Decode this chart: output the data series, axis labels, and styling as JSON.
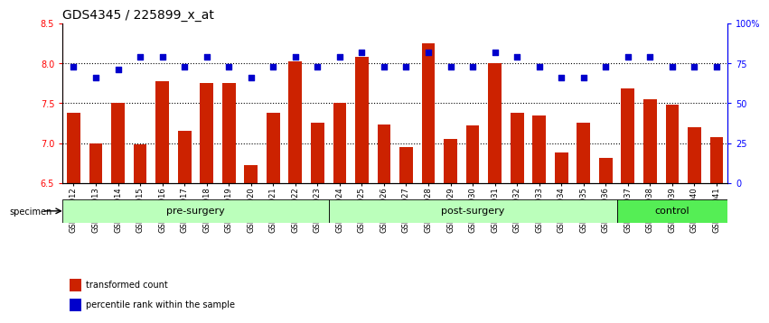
{
  "title": "GDS4345 / 225899_x_at",
  "categories": [
    "GSM842012",
    "GSM842013",
    "GSM842014",
    "GSM842015",
    "GSM842016",
    "GSM842017",
    "GSM842018",
    "GSM842019",
    "GSM842020",
    "GSM842021",
    "GSM842022",
    "GSM842023",
    "GSM842024",
    "GSM842025",
    "GSM842026",
    "GSM842027",
    "GSM842028",
    "GSM842029",
    "GSM842030",
    "GSM842031",
    "GSM842032",
    "GSM842033",
    "GSM842034",
    "GSM842035",
    "GSM842036",
    "GSM842037",
    "GSM842038",
    "GSM842039",
    "GSM842040",
    "GSM842041"
  ],
  "bar_values": [
    7.38,
    7.0,
    7.5,
    6.98,
    7.78,
    7.15,
    7.75,
    7.75,
    6.72,
    7.38,
    8.02,
    7.25,
    7.5,
    8.08,
    7.23,
    6.95,
    8.25,
    7.05,
    7.22,
    8.0,
    7.38,
    7.35,
    6.88,
    7.25,
    6.82,
    7.68,
    7.55,
    7.48,
    7.2,
    7.07
  ],
  "percentile_values": [
    73,
    66,
    71,
    79,
    79,
    73,
    79,
    73,
    66,
    73,
    79,
    73,
    79,
    82,
    73,
    73,
    82,
    73,
    73,
    82,
    79,
    73,
    66,
    66,
    73,
    79,
    79,
    73,
    73,
    73
  ],
  "bar_color": "#cc2200",
  "dot_color": "#0000cc",
  "ylim_left": [
    6.5,
    8.5
  ],
  "ylim_right": [
    0,
    100
  ],
  "yticks_left": [
    6.5,
    7.0,
    7.5,
    8.0,
    8.5
  ],
  "yticks_right": [
    0,
    25,
    50,
    75,
    100
  ],
  "ytick_labels_right": [
    "0",
    "25",
    "50",
    "75",
    "100%"
  ],
  "grid_values": [
    7.0,
    7.5,
    8.0
  ],
  "group_defs": [
    {
      "start": 0,
      "end": 11,
      "color": "#bbffbb",
      "label": "pre-surgery"
    },
    {
      "start": 12,
      "end": 24,
      "color": "#bbffbb",
      "label": "post-surgery"
    },
    {
      "start": 25,
      "end": 29,
      "color": "#55ee55",
      "label": "control"
    }
  ],
  "specimen_label": "specimen",
  "legend": [
    {
      "label": "transformed count",
      "color": "#cc2200"
    },
    {
      "label": "percentile rank within the sample",
      "color": "#0000cc"
    }
  ],
  "title_fontsize": 10,
  "tick_fontsize": 7,
  "xlabel_fontsize": 6,
  "group_fontsize": 8
}
